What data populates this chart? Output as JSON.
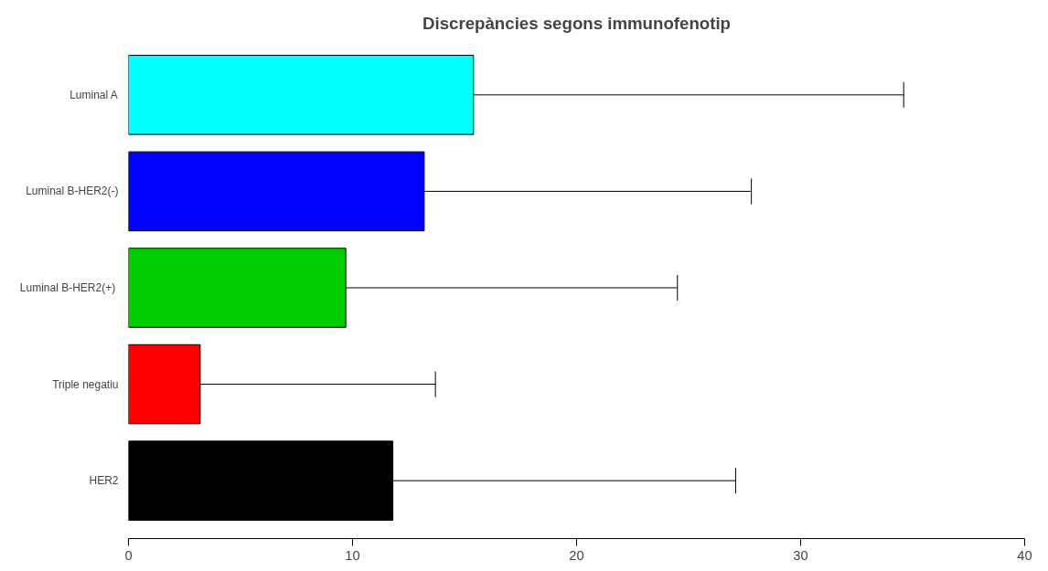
{
  "chart_data": {
    "type": "bar",
    "orientation": "horizontal",
    "title": "Discrepàncies segons immunofenotip",
    "categories": [
      "Luminal A",
      "Luminal B-HER2(-)",
      "Luminal  B-HER2(+)",
      "Triple negatiu",
      "HER2"
    ],
    "values": [
      15.4,
      13.2,
      9.7,
      3.2,
      11.8
    ],
    "colors": [
      "#00ffff",
      "#0000ff",
      "#00cd00",
      "#ff0000",
      "#000000"
    ],
    "errors": [
      [
        15.4,
        34.6
      ],
      [
        13.2,
        27.8
      ],
      [
        9.7,
        24.5
      ],
      [
        3.2,
        13.7
      ],
      [
        11.8,
        27.1
      ]
    ],
    "xlim": [
      0,
      40
    ],
    "xticks": [
      0,
      10,
      20,
      30,
      40
    ],
    "grid": false
  }
}
